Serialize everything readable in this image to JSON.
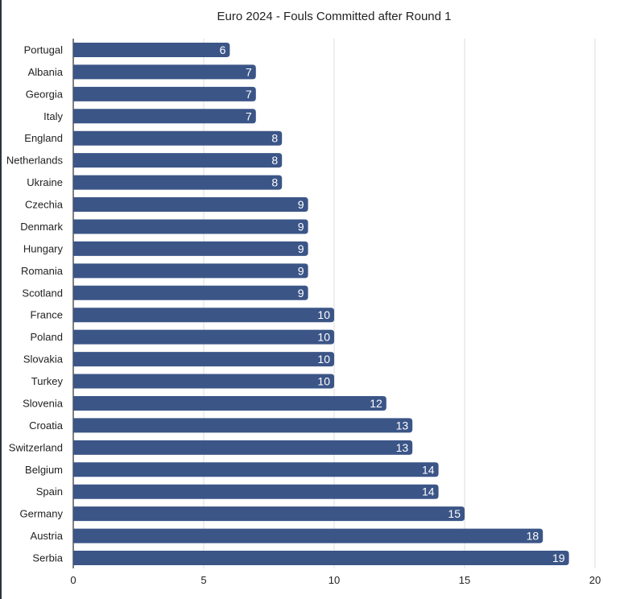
{
  "chart_data": {
    "type": "bar",
    "orientation": "horizontal",
    "title": "Euro 2024 - Fouls Committed after Round 1",
    "categories": [
      "Portugal",
      "Albania",
      "Georgia",
      "Italy",
      "England",
      "Netherlands",
      "Ukraine",
      "Czechia",
      "Denmark",
      "Hungary",
      "Romania",
      "Scotland",
      "France",
      "Poland",
      "Slovakia",
      "Turkey",
      "Slovenia",
      "Croatia",
      "Switzerland",
      "Belgium",
      "Spain",
      "Germany",
      "Austria",
      "Serbia"
    ],
    "values": [
      6,
      7,
      7,
      7,
      8,
      8,
      8,
      9,
      9,
      9,
      9,
      9,
      10,
      10,
      10,
      10,
      12,
      13,
      13,
      14,
      14,
      15,
      18,
      19
    ],
    "xlim": [
      0,
      20
    ],
    "xticks": [
      0,
      5,
      10,
      15,
      20
    ],
    "grid": true,
    "data_labels": true,
    "bar_color": "#3b5587",
    "xlabel": "",
    "ylabel": ""
  }
}
